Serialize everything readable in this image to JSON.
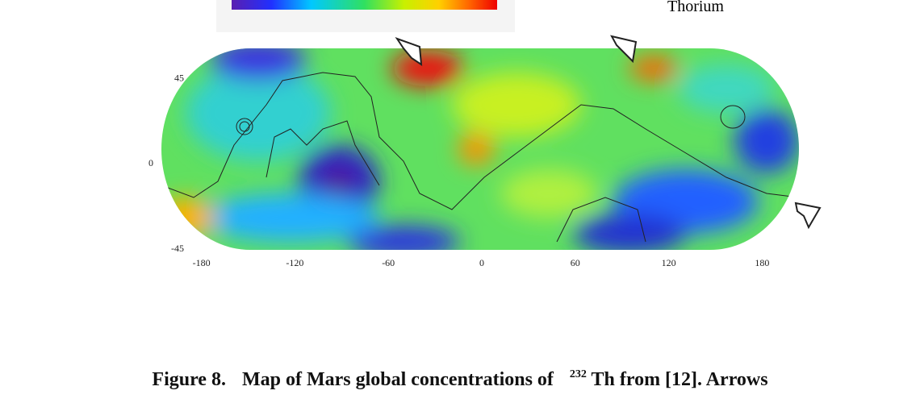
{
  "figure": {
    "colorbar_label": "Thorium",
    "x_ticks": [
      -180,
      -120,
      -60,
      0,
      60,
      120,
      180
    ],
    "y_ticks": [
      45,
      0,
      -45
    ],
    "caption": {
      "label": "Figure 8.",
      "text_before": "Map of Mars global concentrations of",
      "superscript": "232",
      "text_after": "Th  from [12]. Arrows"
    }
  }
}
